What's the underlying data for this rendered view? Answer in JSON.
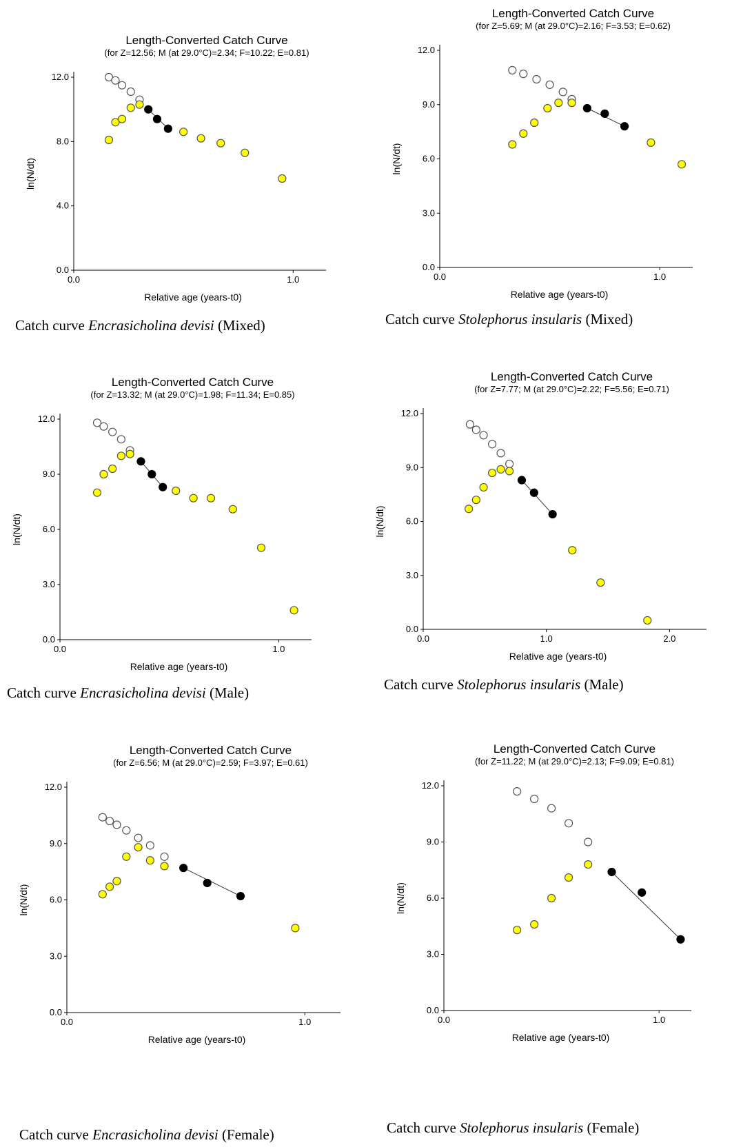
{
  "chart_data": [
    {
      "type": "scatter",
      "title": "Length-Converted Catch Curve",
      "subtitle": "(for Z=12.56; M (at 29.0°C)=2.34; F=10.22; E=0.81)",
      "xlabel": "Relative age (years-t0)",
      "ylabel": "ln(N/dt)",
      "xlim": [
        0,
        1.15
      ],
      "ylim": [
        0,
        12.0
      ],
      "xticks": [
        0,
        1.0
      ],
      "yticks": [
        0,
        4.0,
        8.0,
        12.0
      ],
      "tick_decimals": 1,
      "caption": {
        "prefix": "Catch curve ",
        "species": "Encrasicholina devisi",
        "suffix": " (Mixed)"
      },
      "series": [
        {
          "style": "open",
          "points": [
            [
              0.16,
              12.0
            ],
            [
              0.19,
              11.8
            ],
            [
              0.22,
              11.5
            ],
            [
              0.26,
              11.1
            ],
            [
              0.3,
              10.6
            ]
          ]
        },
        {
          "style": "yellow",
          "points": [
            [
              0.16,
              8.1
            ],
            [
              0.19,
              9.2
            ],
            [
              0.22,
              9.4
            ],
            [
              0.26,
              10.1
            ],
            [
              0.3,
              10.3
            ],
            [
              0.5,
              8.6
            ],
            [
              0.58,
              8.2
            ],
            [
              0.67,
              7.9
            ],
            [
              0.78,
              7.3
            ],
            [
              0.95,
              5.7
            ]
          ]
        },
        {
          "style": "filled",
          "points": [
            [
              0.34,
              10.0
            ],
            [
              0.38,
              9.4
            ],
            [
              0.43,
              8.8
            ]
          ]
        }
      ],
      "regression": [
        [
          0.34,
          10.0
        ],
        [
          0.43,
          8.8
        ]
      ]
    },
    {
      "type": "scatter",
      "title": "Length-Converted Catch Curve",
      "subtitle": "(for Z=5.69; M (at 29.0°C)=2.16; F=3.53; E=0.62)",
      "xlabel": "Relative age (years-t0)",
      "ylabel": "ln(N/dt)",
      "xlim": [
        0,
        1.15
      ],
      "ylim": [
        0,
        12.0
      ],
      "xticks": [
        0,
        1.0
      ],
      "yticks": [
        0,
        3.0,
        6.0,
        9.0,
        12.0
      ],
      "tick_decimals": 1,
      "caption": {
        "prefix": "Catch curve ",
        "species": "Stolephorus insularis",
        "suffix": " (Mixed)"
      },
      "series": [
        {
          "style": "open",
          "points": [
            [
              0.33,
              10.9
            ],
            [
              0.38,
              10.7
            ],
            [
              0.44,
              10.4
            ],
            [
              0.5,
              10.1
            ],
            [
              0.56,
              9.7
            ],
            [
              0.6,
              9.3
            ]
          ]
        },
        {
          "style": "yellow",
          "points": [
            [
              0.33,
              6.8
            ],
            [
              0.38,
              7.4
            ],
            [
              0.43,
              8.0
            ],
            [
              0.49,
              8.8
            ],
            [
              0.54,
              9.1
            ],
            [
              0.6,
              9.1
            ],
            [
              0.96,
              6.9
            ],
            [
              1.1,
              5.7
            ]
          ]
        },
        {
          "style": "filled",
          "points": [
            [
              0.67,
              8.8
            ],
            [
              0.75,
              8.5
            ],
            [
              0.84,
              7.8
            ]
          ]
        }
      ],
      "regression": [
        [
          0.67,
          8.8
        ],
        [
          0.84,
          7.8
        ]
      ]
    },
    {
      "type": "scatter",
      "title": "Length-Converted Catch Curve",
      "subtitle": "(for Z=13.32; M (at 29.0°C)=1.98; F=11.34; E=0.85)",
      "xlabel": "Relative age (years-t0)",
      "ylabel": "ln(N/dt)",
      "xlim": [
        0,
        1.15
      ],
      "ylim": [
        0,
        12.0
      ],
      "xticks": [
        0,
        1.0
      ],
      "yticks": [
        0,
        3.0,
        6.0,
        9.0,
        12.0
      ],
      "tick_decimals": 1,
      "caption": {
        "prefix": "Catch curve ",
        "species": "Encrasicholina devisi",
        "suffix": " (Male)"
      },
      "series": [
        {
          "style": "open",
          "points": [
            [
              0.17,
              11.8
            ],
            [
              0.2,
              11.6
            ],
            [
              0.24,
              11.3
            ],
            [
              0.28,
              10.9
            ],
            [
              0.32,
              10.3
            ]
          ]
        },
        {
          "style": "yellow",
          "points": [
            [
              0.17,
              8.0
            ],
            [
              0.2,
              9.0
            ],
            [
              0.24,
              9.3
            ],
            [
              0.28,
              10.0
            ],
            [
              0.32,
              10.1
            ],
            [
              0.53,
              8.1
            ],
            [
              0.61,
              7.7
            ],
            [
              0.69,
              7.7
            ],
            [
              0.79,
              7.1
            ],
            [
              0.92,
              5.0
            ],
            [
              1.07,
              1.6
            ]
          ]
        },
        {
          "style": "filled",
          "points": [
            [
              0.37,
              9.7
            ],
            [
              0.42,
              9.0
            ],
            [
              0.47,
              8.3
            ]
          ]
        }
      ],
      "regression": [
        [
          0.37,
          9.7
        ],
        [
          0.47,
          8.3
        ]
      ]
    },
    {
      "type": "scatter",
      "title": "Length-Converted Catch Curve",
      "subtitle": "(for Z=7.77; M (at 29.0°C)=2.22; F=5.56; E=0.71)",
      "xlabel": "Relative age (years-t0)",
      "ylabel": "ln(N/dt)",
      "xlim": [
        0,
        2.3
      ],
      "ylim": [
        0,
        12.0
      ],
      "xticks": [
        0,
        1.0,
        2.0
      ],
      "yticks": [
        0,
        3.0,
        6.0,
        9.0,
        12.0
      ],
      "tick_decimals": 1,
      "caption": {
        "prefix": "Catch curve ",
        "species": "Stolephorus insularis",
        "suffix": " (Male)"
      },
      "series": [
        {
          "style": "open",
          "points": [
            [
              0.38,
              11.4
            ],
            [
              0.43,
              11.1
            ],
            [
              0.49,
              10.8
            ],
            [
              0.56,
              10.3
            ],
            [
              0.63,
              9.8
            ],
            [
              0.7,
              9.2
            ]
          ]
        },
        {
          "style": "yellow",
          "points": [
            [
              0.37,
              6.7
            ],
            [
              0.43,
              7.2
            ],
            [
              0.49,
              7.9
            ],
            [
              0.56,
              8.7
            ],
            [
              0.63,
              8.9
            ],
            [
              0.7,
              8.8
            ],
            [
              1.21,
              4.4
            ],
            [
              1.44,
              2.6
            ],
            [
              1.82,
              0.5
            ]
          ]
        },
        {
          "style": "filled",
          "points": [
            [
              0.8,
              8.3
            ],
            [
              0.9,
              7.6
            ],
            [
              1.05,
              6.4
            ]
          ]
        }
      ],
      "regression": [
        [
          0.8,
          8.3
        ],
        [
          1.05,
          6.4
        ]
      ]
    },
    {
      "type": "scatter",
      "title": "Length-Converted Catch Curve",
      "subtitle": "(for Z=6.56; M (at 29.0°C)=2.59; F=3.97; E=0.61)",
      "xlabel": "Relative age (years-t0)",
      "ylabel": "ln(N/dt)",
      "xlim": [
        0,
        1.15
      ],
      "ylim": [
        0,
        12.0
      ],
      "xticks": [
        0,
        1.0
      ],
      "yticks": [
        0,
        3.0,
        6.0,
        9.0,
        12.0
      ],
      "tick_decimals": 1,
      "caption": {
        "prefix": "Catch curve ",
        "species": "Encrasicholina devisi",
        "suffix": " (Female)"
      },
      "series": [
        {
          "style": "open",
          "points": [
            [
              0.15,
              10.4
            ],
            [
              0.18,
              10.2
            ],
            [
              0.21,
              10.0
            ],
            [
              0.25,
              9.7
            ],
            [
              0.3,
              9.3
            ],
            [
              0.35,
              8.9
            ],
            [
              0.41,
              8.3
            ]
          ]
        },
        {
          "style": "yellow",
          "points": [
            [
              0.15,
              6.3
            ],
            [
              0.18,
              6.7
            ],
            [
              0.21,
              7.0
            ],
            [
              0.25,
              8.3
            ],
            [
              0.3,
              8.8
            ],
            [
              0.35,
              8.1
            ],
            [
              0.41,
              7.8
            ],
            [
              0.96,
              4.5
            ]
          ]
        },
        {
          "style": "filled",
          "points": [
            [
              0.49,
              7.7
            ],
            [
              0.59,
              6.9
            ],
            [
              0.73,
              6.2
            ]
          ]
        }
      ],
      "regression": [
        [
          0.49,
          7.7
        ],
        [
          0.73,
          6.2
        ]
      ]
    },
    {
      "type": "scatter",
      "title": "Length-Converted Catch Curve",
      "subtitle": "(for Z=11.22; M (at 29.0°C)=2.13; F=9.09; E=0.81)",
      "xlabel": "Relative age (years-t0)",
      "ylabel": "ln(N/dt)",
      "xlim": [
        0,
        1.15
      ],
      "ylim": [
        0,
        12.0
      ],
      "xticks": [
        0,
        1.0
      ],
      "yticks": [
        0,
        3.0,
        6.0,
        9.0,
        12.0
      ],
      "tick_decimals": 1,
      "caption": {
        "prefix": "Catch curve ",
        "species": "Stolephorus insularis",
        "suffix": " (Female)"
      },
      "series": [
        {
          "style": "open",
          "points": [
            [
              0.34,
              11.7
            ],
            [
              0.42,
              11.3
            ],
            [
              0.5,
              10.8
            ],
            [
              0.58,
              10.0
            ],
            [
              0.67,
              9.0
            ]
          ]
        },
        {
          "style": "yellow",
          "points": [
            [
              0.34,
              4.3
            ],
            [
              0.42,
              4.6
            ],
            [
              0.5,
              6.0
            ],
            [
              0.58,
              7.1
            ],
            [
              0.67,
              7.8
            ]
          ]
        },
        {
          "style": "filled",
          "points": [
            [
              0.78,
              7.4
            ],
            [
              0.92,
              6.3
            ],
            [
              1.1,
              3.8
            ]
          ]
        }
      ],
      "regression": [
        [
          0.78,
          7.4
        ],
        [
          1.1,
          3.8
        ]
      ]
    }
  ]
}
